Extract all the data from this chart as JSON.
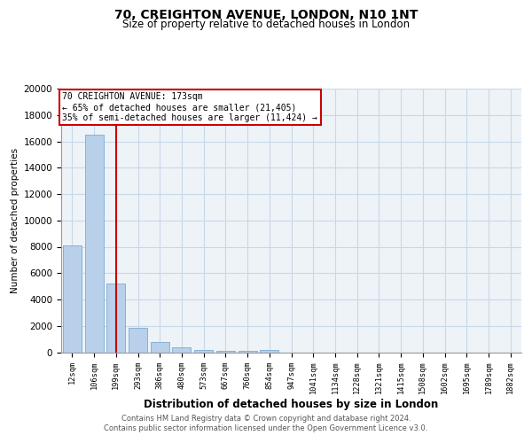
{
  "title_line1": "70, CREIGHTON AVENUE, LONDON, N10 1NT",
  "title_line2": "Size of property relative to detached houses in London",
  "xlabel": "Distribution of detached houses by size in London",
  "ylabel": "Number of detached properties",
  "categories": [
    "12sqm",
    "106sqm",
    "199sqm",
    "293sqm",
    "386sqm",
    "480sqm",
    "573sqm",
    "667sqm",
    "760sqm",
    "854sqm",
    "947sqm",
    "1041sqm",
    "1134sqm",
    "1228sqm",
    "1321sqm",
    "1415sqm",
    "1508sqm",
    "1602sqm",
    "1695sqm",
    "1789sqm",
    "1882sqm"
  ],
  "values": [
    8100,
    16500,
    5200,
    1850,
    750,
    340,
    190,
    120,
    80,
    150,
    0,
    0,
    0,
    0,
    0,
    0,
    0,
    0,
    0,
    0,
    0
  ],
  "bar_color": "#b8d0ea",
  "bar_edge_color": "#7aaad0",
  "property_line_x": 2.0,
  "annotation_text": "70 CREIGHTON AVENUE: 173sqm\n← 65% of detached houses are smaller (21,405)\n35% of semi-detached houses are larger (11,424) →",
  "annotation_box_color": "#ffffff",
  "annotation_box_edge": "#cc0000",
  "red_line_color": "#cc0000",
  "grid_color": "#c8d8e8",
  "background_color": "#eef3f8",
  "footnote": "Contains HM Land Registry data © Crown copyright and database right 2024.\nContains public sector information licensed under the Open Government Licence v3.0.",
  "ylim": [
    0,
    20000
  ],
  "title1_fontsize": 10,
  "title2_fontsize": 8.5
}
